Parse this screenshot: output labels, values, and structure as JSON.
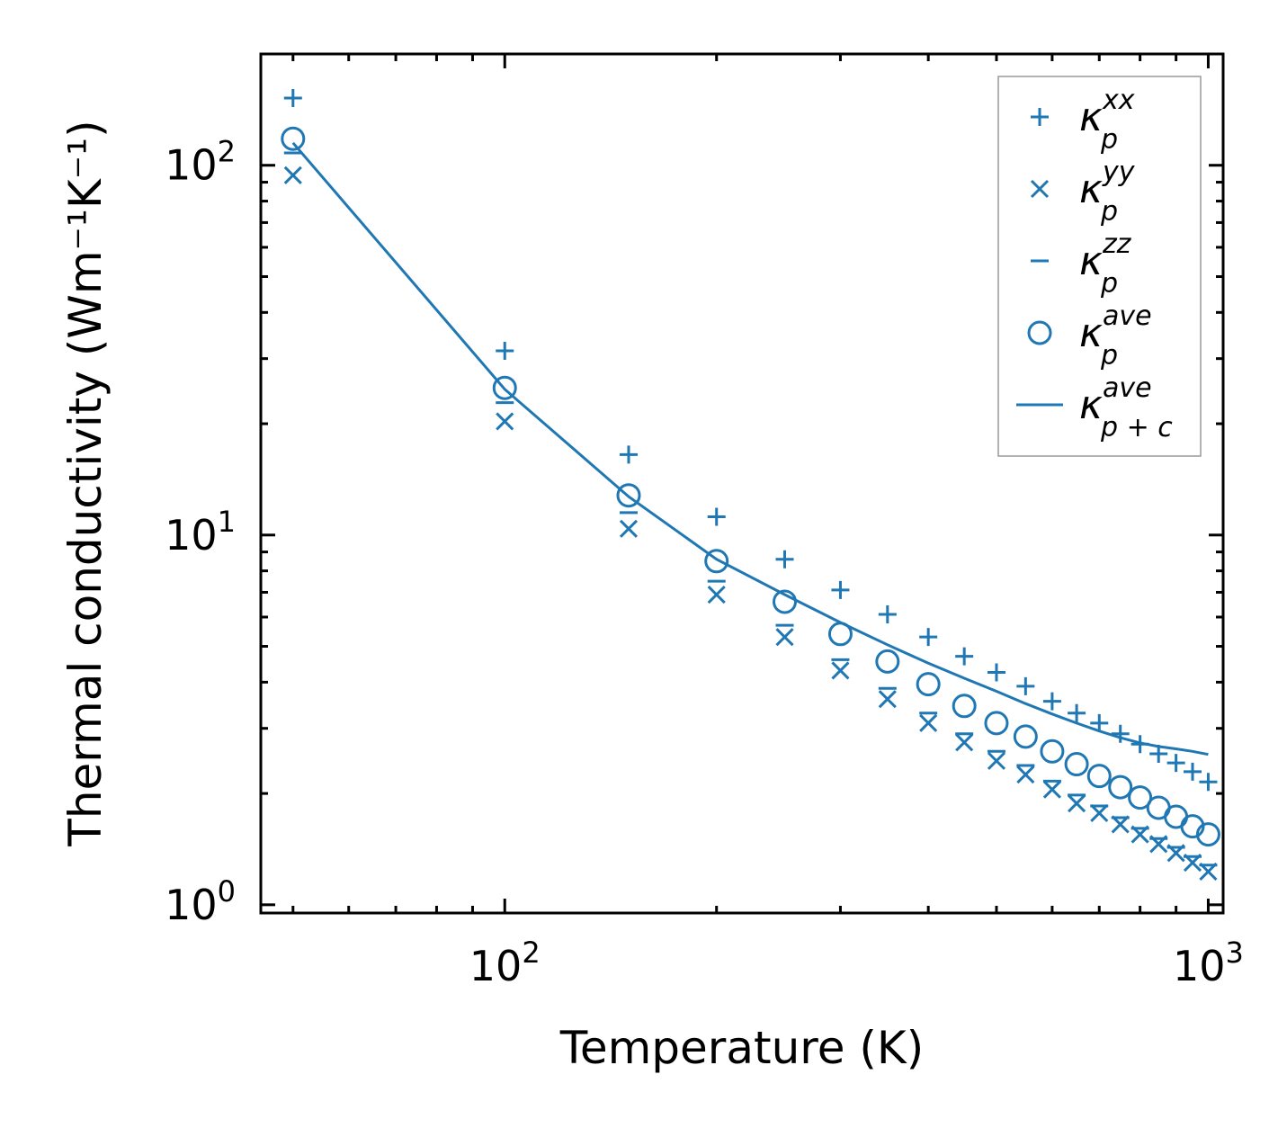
{
  "chart_data": {
    "type": "scatter",
    "xscale": "log",
    "yscale": "log",
    "xlabel": "Temperature (K)",
    "ylabel": "Thermal conductivity (Wm⁻¹K⁻¹)",
    "xlim": [
      45,
      1050
    ],
    "ylim": [
      0.95,
      200
    ],
    "xticks": [
      {
        "value": 100,
        "base": "10",
        "exp": "2"
      },
      {
        "value": 1000,
        "base": "10",
        "exp": "3"
      }
    ],
    "yticks": [
      {
        "value": 1,
        "base": "10",
        "exp": "0"
      },
      {
        "value": 10,
        "base": "10",
        "exp": "1"
      },
      {
        "value": 100,
        "base": "10",
        "exp": "2"
      }
    ],
    "color": "#1f77b4",
    "x": [
      50,
      100,
      150,
      200,
      250,
      300,
      350,
      400,
      450,
      500,
      550,
      600,
      650,
      700,
      750,
      800,
      850,
      900,
      950,
      1000
    ],
    "series": [
      {
        "name": "κp^xx",
        "marker": "plus",
        "legend_main": "κ",
        "legend_sub": "p",
        "legend_sup": "xx",
        "values": [
          152,
          31.5,
          16.5,
          11.2,
          8.6,
          7.1,
          6.1,
          5.3,
          4.7,
          4.25,
          3.9,
          3.55,
          3.3,
          3.1,
          2.9,
          2.72,
          2.56,
          2.42,
          2.29,
          2.15
        ]
      },
      {
        "name": "κp^yy",
        "marker": "x",
        "legend_main": "κ",
        "legend_sub": "p",
        "legend_sup": "yy",
        "values": [
          94,
          20.3,
          10.4,
          6.9,
          5.3,
          4.3,
          3.6,
          3.1,
          2.75,
          2.45,
          2.25,
          2.05,
          1.88,
          1.77,
          1.65,
          1.55,
          1.46,
          1.38,
          1.3,
          1.23
        ]
      },
      {
        "name": "κp^zz",
        "marker": "hline",
        "legend_main": "κ",
        "legend_sub": "p",
        "legend_sup": "zz",
        "values": [
          108,
          22.8,
          11.5,
          7.5,
          5.7,
          4.6,
          3.85,
          3.3,
          2.9,
          2.6,
          2.38,
          2.16,
          1.98,
          1.85,
          1.72,
          1.61,
          1.51,
          1.43,
          1.35,
          1.28
        ]
      },
      {
        "name": "κp^ave",
        "marker": "circle",
        "legend_main": "κ",
        "legend_sub": "p",
        "legend_sup": "ave",
        "values": [
          118,
          25,
          12.8,
          8.5,
          6.6,
          5.4,
          4.55,
          3.95,
          3.45,
          3.1,
          2.85,
          2.6,
          2.4,
          2.23,
          2.08,
          1.95,
          1.83,
          1.73,
          1.63,
          1.55
        ]
      },
      {
        "name": "κp+c^ave",
        "marker": "line",
        "legend_main": "κ",
        "legend_sub": "p + c",
        "legend_sup": "ave",
        "values": [
          115,
          24.8,
          12.7,
          8.6,
          6.9,
          5.8,
          5.05,
          4.5,
          4.1,
          3.78,
          3.5,
          3.28,
          3.1,
          2.95,
          2.83,
          2.74,
          2.68,
          2.64,
          2.6,
          2.55
        ]
      }
    ],
    "legend_position": "top-right"
  }
}
